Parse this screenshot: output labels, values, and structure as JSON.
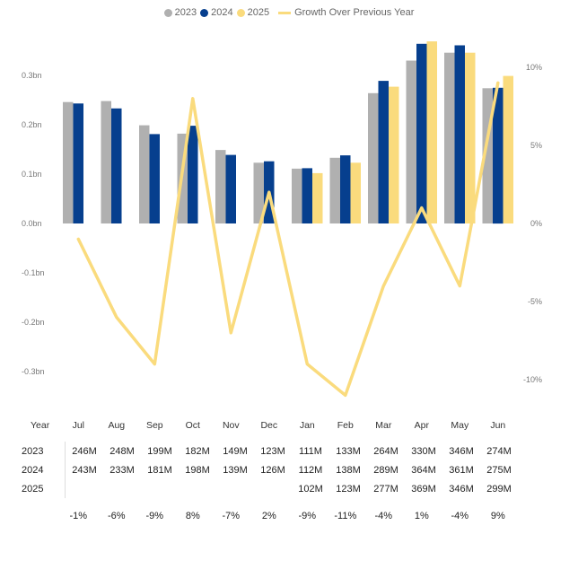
{
  "legend": {
    "items": [
      {
        "label": "2023",
        "color": "#B0B0B0"
      },
      {
        "label": "2024",
        "color": "#063F8E"
      },
      {
        "label": "2025",
        "color": "#FADB7D"
      }
    ],
    "line_label": "Growth Over Previous Year",
    "line_color": "#FADB7D"
  },
  "chart_data": {
    "type": "bar",
    "categories": [
      "Jul",
      "Aug",
      "Sep",
      "Oct",
      "Nov",
      "Dec",
      "Jan",
      "Feb",
      "Mar",
      "Apr",
      "May",
      "Jun"
    ],
    "series": [
      {
        "name": "2023",
        "values": [
          0.246,
          0.248,
          0.199,
          0.182,
          0.149,
          0.123,
          0.111,
          0.133,
          0.264,
          0.33,
          0.346,
          0.274
        ]
      },
      {
        "name": "2024",
        "values": [
          0.243,
          0.233,
          0.181,
          0.198,
          0.139,
          0.126,
          0.112,
          0.138,
          0.289,
          0.364,
          0.361,
          0.275
        ]
      },
      {
        "name": "2025",
        "values": [
          null,
          null,
          null,
          null,
          null,
          null,
          0.102,
          0.123,
          0.277,
          0.369,
          0.346,
          0.299
        ]
      }
    ],
    "line_series": {
      "name": "Growth Over Previous Year",
      "values": [
        -1,
        -6,
        -9,
        8,
        -7,
        2,
        -9,
        -11,
        -4,
        1,
        -4,
        9
      ]
    },
    "y_left": {
      "ticks": [
        "0.3bn",
        "0.2bn",
        "0.1bn",
        "0.0bn",
        "-0.1bn",
        "-0.2bn",
        "-0.3bn"
      ],
      "ylim": [
        -0.3,
        0.3
      ]
    },
    "y_right": {
      "ticks": [
        "10%",
        "5%",
        "0%",
        "-5%",
        "-10%"
      ],
      "ylim": [
        -10,
        10
      ]
    },
    "legend_position": "top-center",
    "grid": false
  },
  "table": {
    "header": "Year",
    "rows": [
      {
        "label": "2023",
        "values": [
          "246M",
          "248M",
          "199M",
          "182M",
          "149M",
          "123M",
          "111M",
          "133M",
          "264M",
          "330M",
          "346M",
          "274M"
        ]
      },
      {
        "label": "2024",
        "values": [
          "243M",
          "233M",
          "181M",
          "198M",
          "139M",
          "126M",
          "112M",
          "138M",
          "289M",
          "364M",
          "361M",
          "275M"
        ]
      },
      {
        "label": "2025",
        "values": [
          "",
          "",
          "",
          "",
          "",
          "",
          "102M",
          "123M",
          "277M",
          "369M",
          "346M",
          "299M"
        ]
      }
    ],
    "growth": [
      "-1%",
      "-6%",
      "-9%",
      "8%",
      "-7%",
      "2%",
      "-9%",
      "-11%",
      "-4%",
      "1%",
      "-4%",
      "9%"
    ]
  }
}
